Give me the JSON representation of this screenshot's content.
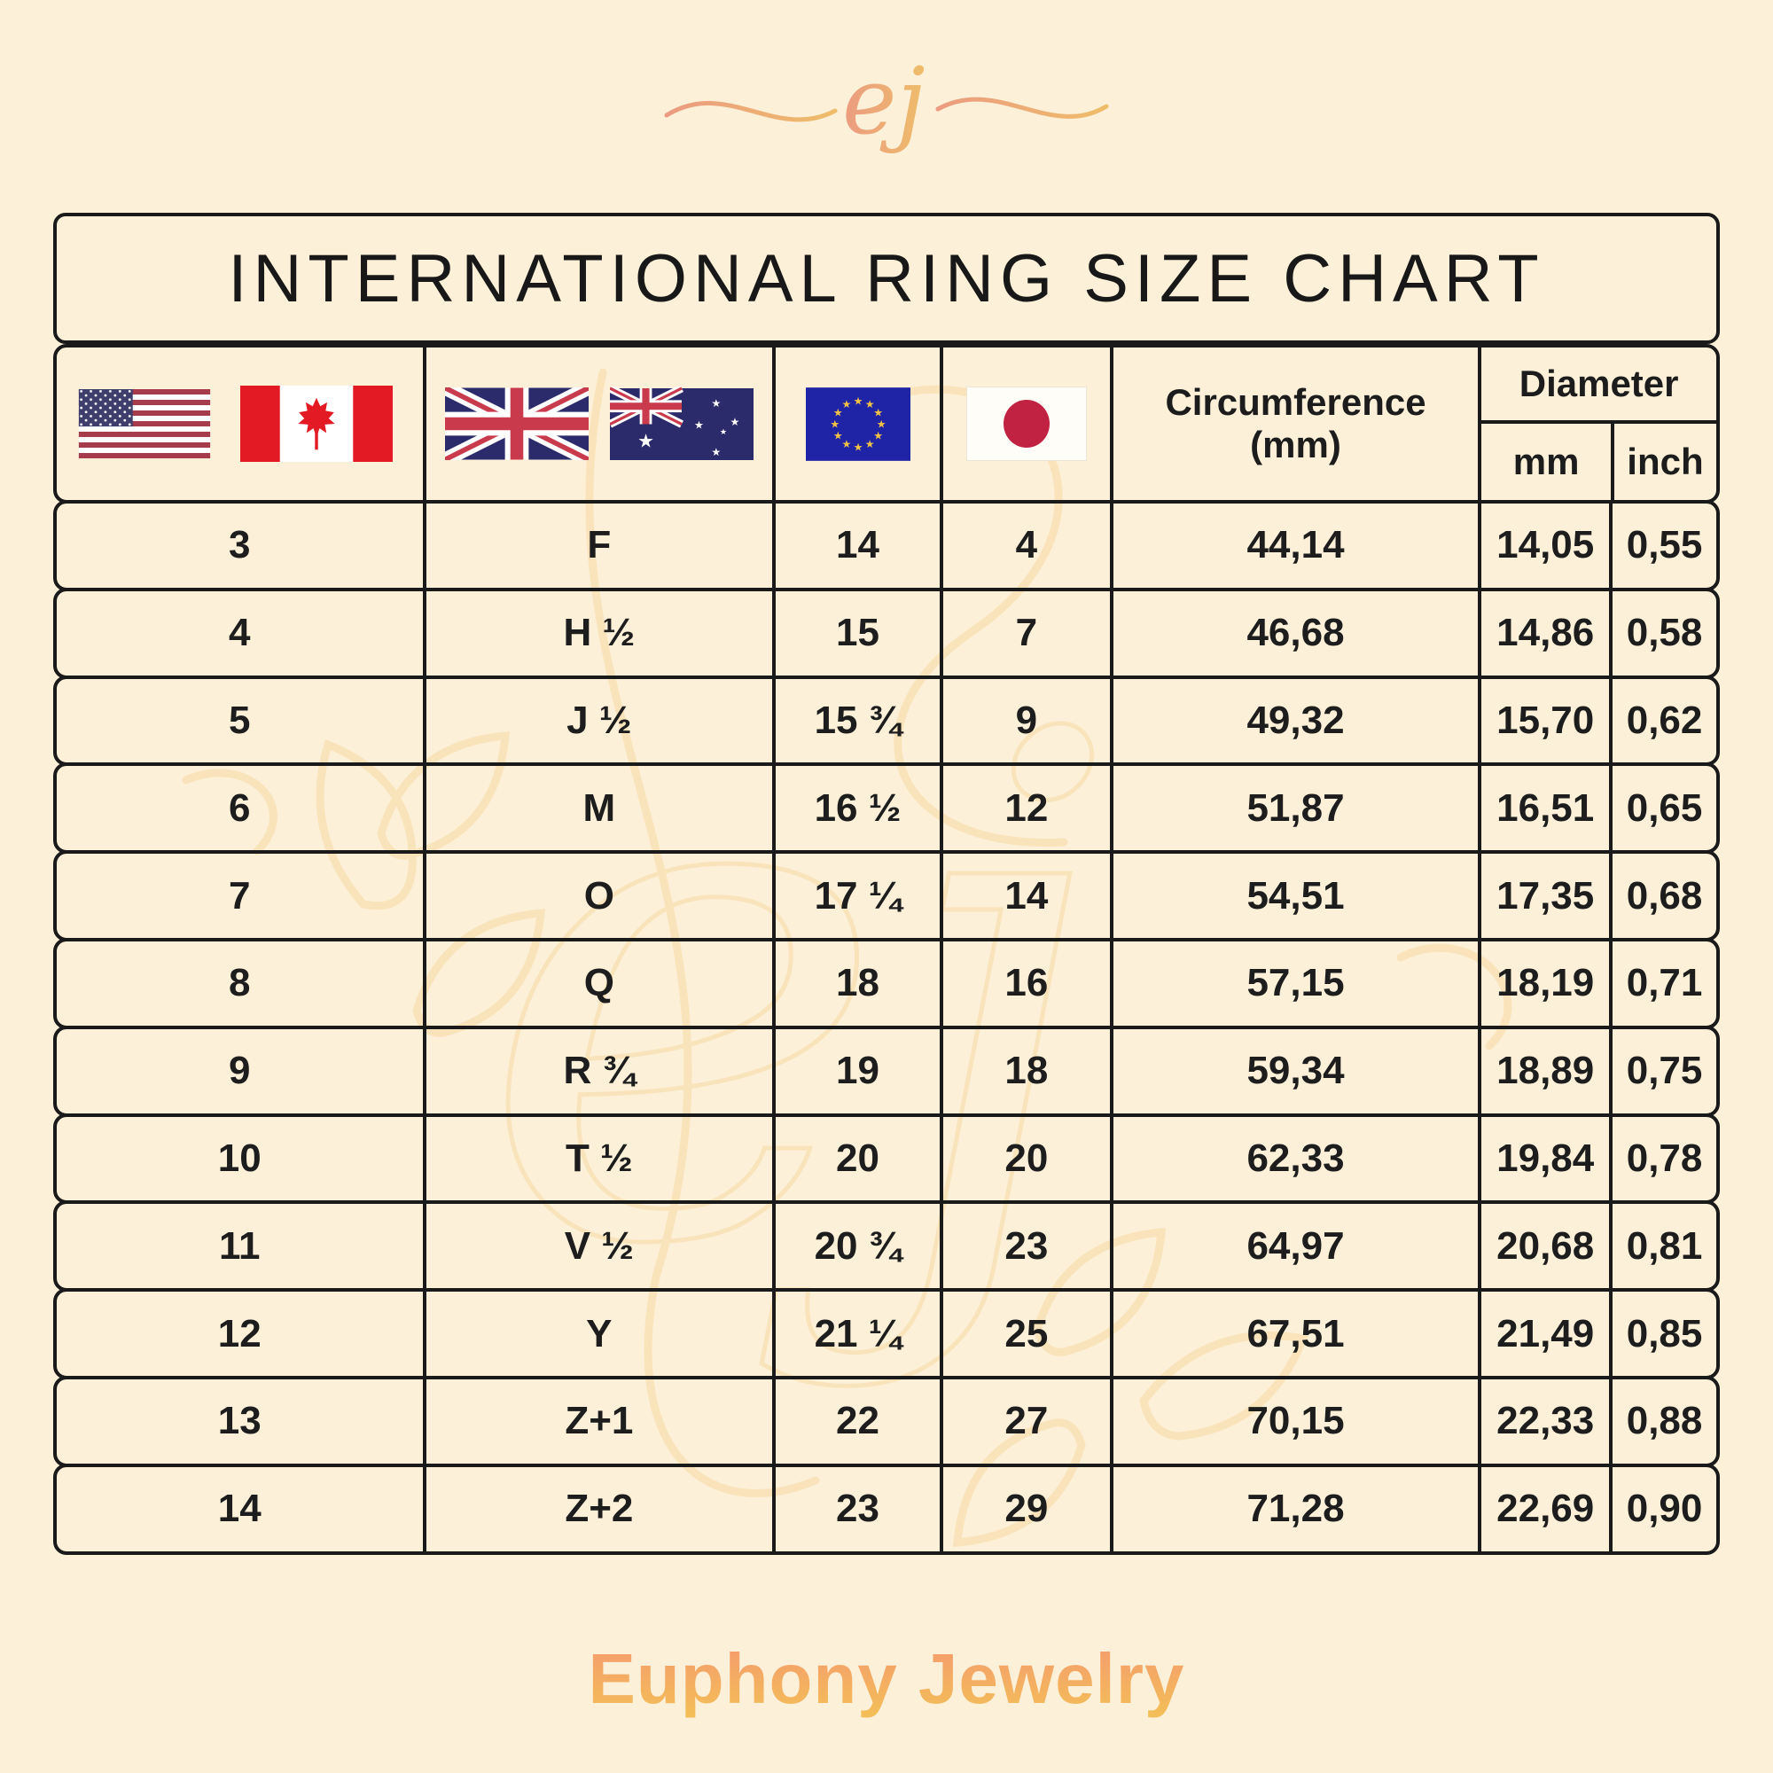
{
  "brand": {
    "monogram": "ej",
    "name": "Euphony Jewelry",
    "gradient_top": "#F59C6E",
    "gradient_bottom": "#F3BD58",
    "watermark_color": "#F8D9A2"
  },
  "title": "INTERNATIONAL RING SIZE CHART",
  "header": {
    "circumference_line1": "Circumference",
    "circumference_line2": "(mm)",
    "diameter": "Diameter",
    "diameter_units": {
      "mm": "mm",
      "inch": "inch"
    },
    "flag_groups": [
      {
        "name": "us-canada",
        "flags": [
          "usa",
          "canada"
        ]
      },
      {
        "name": "uk-australia",
        "flags": [
          "united-kingdom",
          "australia"
        ]
      },
      {
        "name": "european-union",
        "flags": [
          "european-union"
        ]
      },
      {
        "name": "japan",
        "flags": [
          "japan"
        ]
      }
    ]
  },
  "chart_data": {
    "type": "table",
    "title": "INTERNATIONAL RING SIZE CHART",
    "columns": [
      "US / Canada",
      "UK / Australia",
      "EU",
      "Japan",
      "Circumference (mm)",
      "Diameter mm",
      "Diameter inch"
    ],
    "rows": [
      [
        "3",
        "F",
        "14",
        "4",
        "44,14",
        "14,05",
        "0,55"
      ],
      [
        "4",
        "H ½",
        "15",
        "7",
        "46,68",
        "14,86",
        "0,58"
      ],
      [
        "5",
        "J ½",
        "15 ¾",
        "9",
        "49,32",
        "15,70",
        "0,62"
      ],
      [
        "6",
        "M",
        "16 ½",
        "12",
        "51,87",
        "16,51",
        "0,65"
      ],
      [
        "7",
        "O",
        "17 ¼",
        "14",
        "54,51",
        "17,35",
        "0,68"
      ],
      [
        "8",
        "Q",
        "18",
        "16",
        "57,15",
        "18,19",
        "0,71"
      ],
      [
        "9",
        "R ¾",
        "19",
        "18",
        "59,34",
        "18,89",
        "0,75"
      ],
      [
        "10",
        "T ½",
        "20",
        "20",
        "62,33",
        "19,84",
        "0,78"
      ],
      [
        "11",
        "V ½",
        "20 ¾",
        "23",
        "64,97",
        "20,68",
        "0,81"
      ],
      [
        "12",
        "Y",
        "21 ¼",
        "25",
        "67,51",
        "21,49",
        "0,85"
      ],
      [
        "13",
        "Z+1",
        "22",
        "27",
        "70,15",
        "22,33",
        "0,88"
      ],
      [
        "14",
        "Z+2",
        "23",
        "29",
        "71,28",
        "22,69",
        "0,90"
      ]
    ]
  },
  "footer": {
    "brand_name": "Euphony Jewelry"
  }
}
